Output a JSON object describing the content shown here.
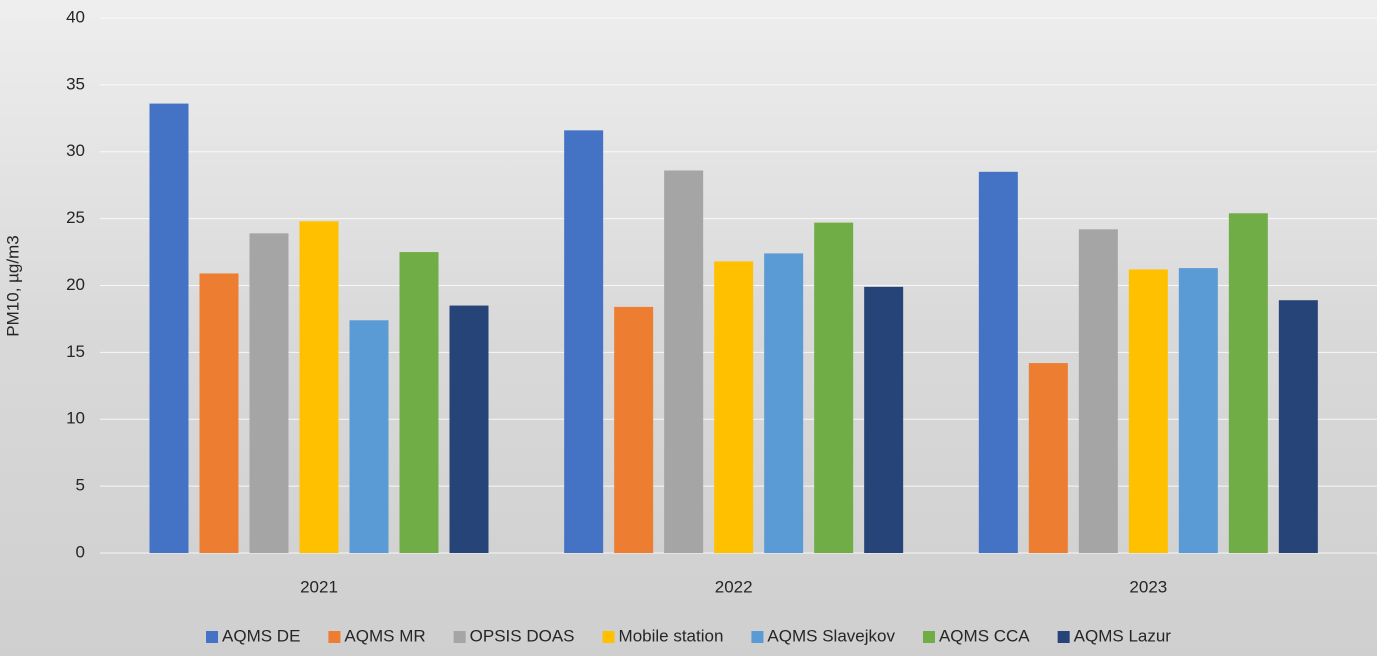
{
  "chart_data": {
    "type": "bar",
    "y_label": "PM10, µg/m3",
    "categories": [
      "2021",
      "2022",
      "2023"
    ],
    "series": [
      {
        "name": "AQMS DE",
        "color": "#4472c4",
        "values": [
          33.6,
          31.6,
          28.5
        ]
      },
      {
        "name": "AQMS MR",
        "color": "#ed7d31",
        "values": [
          20.9,
          18.4,
          14.2
        ]
      },
      {
        "name": "OPSIS DOAS",
        "color": "#a5a5a5",
        "values": [
          23.9,
          28.6,
          24.2
        ]
      },
      {
        "name": "Mobile station",
        "color": "#ffc000",
        "values": [
          24.8,
          21.8,
          21.2
        ]
      },
      {
        "name": "AQMS Slavejkov",
        "color": "#5b9bd5",
        "values": [
          17.4,
          22.4,
          21.3
        ]
      },
      {
        "name": "AQMS CCA",
        "color": "#70ad47",
        "values": [
          22.5,
          24.7,
          25.4
        ]
      },
      {
        "name": "AQMS Lazur",
        "color": "#264478",
        "values": [
          18.5,
          19.9,
          18.9
        ]
      }
    ],
    "ylim": [
      0,
      40
    ],
    "yticks": [
      0,
      5,
      10,
      15,
      20,
      25,
      30,
      35,
      40
    ],
    "grid": true,
    "legend": "bottom"
  }
}
